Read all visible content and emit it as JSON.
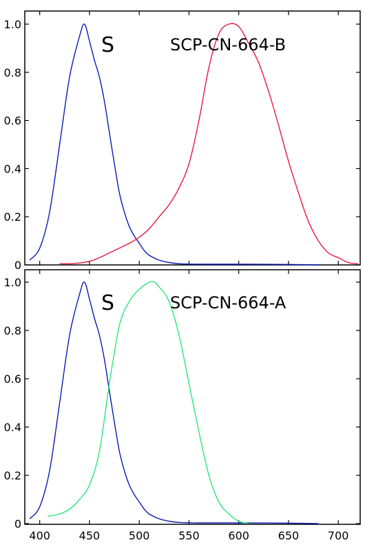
{
  "chart_data": [
    {
      "type": "line",
      "title": "",
      "xlabel": "",
      "ylabel": "",
      "xlim": [
        385,
        722
      ],
      "ylim": [
        0,
        1.0
      ],
      "yticks": [
        0,
        0.2,
        0.4,
        0.6,
        0.8,
        1.0
      ],
      "ytick_labels": [
        "0",
        "0.2",
        "0.4",
        "0.6",
        "0.8",
        "1.0"
      ],
      "grid": false,
      "annotations": [
        "S",
        "SCP-CN-664-B"
      ],
      "series": [
        {
          "name": "S",
          "color": "#0a1ab4",
          "x": [
            390,
            400,
            410,
            420,
            430,
            440,
            445,
            450,
            455,
            460,
            465,
            470,
            475,
            480,
            485,
            490,
            495,
            500,
            505,
            510,
            520,
            530,
            540,
            560,
            600,
            650,
            680
          ],
          "y": [
            0.02,
            0.07,
            0.22,
            0.5,
            0.78,
            0.95,
            1.0,
            0.93,
            0.85,
            0.78,
            0.68,
            0.55,
            0.42,
            0.3,
            0.22,
            0.16,
            0.12,
            0.09,
            0.06,
            0.04,
            0.02,
            0.01,
            0.005,
            0.003,
            0.003,
            0.002,
            0.0
          ]
        },
        {
          "name": "SCP-CN-664-B",
          "color": "#e8183e",
          "x": [
            420,
            430,
            440,
            450,
            460,
            470,
            480,
            490,
            500,
            510,
            520,
            530,
            540,
            550,
            560,
            570,
            580,
            590,
            600,
            610,
            620,
            630,
            640,
            650,
            660,
            670,
            680,
            690,
            700,
            710,
            720
          ],
          "y": [
            0.005,
            0.005,
            0.008,
            0.015,
            0.03,
            0.05,
            0.07,
            0.09,
            0.115,
            0.15,
            0.2,
            0.25,
            0.32,
            0.42,
            0.6,
            0.82,
            0.96,
            1.0,
            0.99,
            0.92,
            0.84,
            0.72,
            0.58,
            0.43,
            0.3,
            0.18,
            0.1,
            0.05,
            0.03,
            0.01,
            0.005
          ]
        }
      ]
    },
    {
      "type": "line",
      "title": "",
      "xlabel": "",
      "ylabel": "",
      "xlim": [
        385,
        722
      ],
      "ylim": [
        0,
        1.0
      ],
      "xticks": [
        400,
        450,
        500,
        550,
        600,
        650,
        700
      ],
      "xtick_labels": [
        "400",
        "450",
        "500",
        "550",
        "600",
        "650",
        "700"
      ],
      "yticks": [
        0,
        0.2,
        0.4,
        0.6,
        0.8,
        1.0
      ],
      "ytick_labels": [
        "0",
        "0.2",
        "0.4",
        "0.6",
        "0.8",
        "1.0"
      ],
      "grid": false,
      "annotations": [
        "S",
        "SCP-CN-664-A"
      ],
      "series": [
        {
          "name": "S",
          "color": "#0a1ab4",
          "x": [
            390,
            400,
            410,
            420,
            430,
            440,
            445,
            450,
            455,
            460,
            465,
            470,
            475,
            480,
            485,
            490,
            495,
            500,
            505,
            510,
            520,
            530,
            540,
            560,
            600,
            650,
            680
          ],
          "y": [
            0.02,
            0.07,
            0.22,
            0.5,
            0.78,
            0.95,
            1.0,
            0.93,
            0.85,
            0.78,
            0.68,
            0.55,
            0.42,
            0.3,
            0.22,
            0.16,
            0.12,
            0.09,
            0.06,
            0.04,
            0.02,
            0.01,
            0.005,
            0.003,
            0.003,
            0.002,
            0.0
          ]
        },
        {
          "name": "SCP-CN-664-A",
          "color": "#28e87a",
          "x": [
            408,
            420,
            430,
            440,
            450,
            460,
            470,
            480,
            490,
            500,
            510,
            515,
            520,
            530,
            540,
            550,
            560,
            570,
            580,
            590,
            600,
            610
          ],
          "y": [
            0.03,
            0.04,
            0.06,
            0.1,
            0.16,
            0.3,
            0.58,
            0.82,
            0.92,
            0.97,
            1.0,
            1.0,
            0.98,
            0.92,
            0.78,
            0.58,
            0.38,
            0.2,
            0.09,
            0.04,
            0.01,
            0.0
          ]
        }
      ]
    }
  ]
}
